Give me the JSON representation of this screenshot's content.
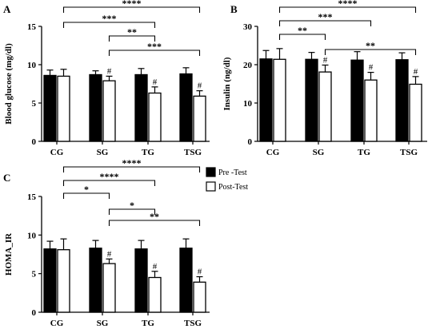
{
  "legend": {
    "items": [
      {
        "label": "Pre -Test",
        "color": "#000000"
      },
      {
        "label": "Post-Test",
        "color": "#ffffff"
      }
    ]
  },
  "chart_data": [
    {
      "id": "A",
      "type": "bar",
      "panel_label": "A",
      "ylabel": "Blood glucose (mg/dl)",
      "categories": [
        "CG",
        "SG",
        "TG",
        "TSG"
      ],
      "ylim": [
        0,
        15
      ],
      "yticks": [
        0,
        5,
        10,
        15
      ],
      "grid": false,
      "series": [
        {
          "name": "Pre -Test",
          "color": "#000000",
          "values": [
            8.6,
            8.7,
            8.7,
            8.8
          ],
          "errors": [
            0.7,
            0.5,
            0.8,
            0.8
          ]
        },
        {
          "name": "Post-Test",
          "color": "#ffffff",
          "values": [
            8.5,
            7.9,
            6.3,
            5.9
          ],
          "errors": [
            0.9,
            0.6,
            0.8,
            0.7
          ]
        }
      ],
      "hash_marks": [
        {
          "category": "SG",
          "text": "#"
        },
        {
          "category": "TG",
          "text": "#"
        },
        {
          "category": "TSG",
          "text": "#"
        }
      ],
      "comparisons": [
        {
          "from": "CG",
          "to": "TSG",
          "label": "****"
        },
        {
          "from": "CG",
          "to": "TG",
          "label": "***"
        },
        {
          "from": "SG",
          "to": "TG",
          "label": "**"
        },
        {
          "from": "SG",
          "to": "TSG",
          "label": "***"
        }
      ]
    },
    {
      "id": "B",
      "type": "bar",
      "panel_label": "B",
      "ylabel": "Insulin (ng/dl)",
      "categories": [
        "CG",
        "SG",
        "TG",
        "TSG"
      ],
      "ylim": [
        0,
        30
      ],
      "yticks": [
        0,
        10,
        20,
        30
      ],
      "grid": false,
      "series": [
        {
          "name": "Pre -Test",
          "color": "#000000",
          "values": [
            21.5,
            21.4,
            21.2,
            21.3
          ],
          "errors": [
            2.2,
            1.8,
            2.2,
            1.8
          ]
        },
        {
          "name": "Post-Test",
          "color": "#ffffff",
          "values": [
            21.4,
            18.1,
            16.0,
            14.9
          ],
          "errors": [
            2.8,
            1.8,
            2.0,
            2.0
          ]
        }
      ],
      "hash_marks": [
        {
          "category": "SG",
          "text": "#"
        },
        {
          "category": "TG",
          "text": "#"
        },
        {
          "category": "TSG",
          "text": "#"
        }
      ],
      "comparisons": [
        {
          "from": "CG",
          "to": "TSG",
          "label": "****"
        },
        {
          "from": "CG",
          "to": "TG",
          "label": "***"
        },
        {
          "from": "CG",
          "to": "SG",
          "label": "**"
        },
        {
          "from": "SG",
          "to": "TSG",
          "label": "**"
        }
      ]
    },
    {
      "id": "C",
      "type": "bar",
      "panel_label": "C",
      "ylabel": "HOMA_IR",
      "categories": [
        "CG",
        "SG",
        "TG",
        "TSG"
      ],
      "ylim": [
        0,
        15
      ],
      "yticks": [
        0,
        5,
        10,
        15
      ],
      "grid": false,
      "series": [
        {
          "name": "Pre -Test",
          "color": "#000000",
          "values": [
            8.2,
            8.3,
            8.2,
            8.3
          ],
          "errors": [
            1.0,
            1.0,
            1.1,
            1.2
          ]
        },
        {
          "name": "Post-Test",
          "color": "#ffffff",
          "values": [
            8.1,
            6.3,
            4.5,
            3.9
          ],
          "errors": [
            1.4,
            0.6,
            0.8,
            0.7
          ]
        }
      ],
      "hash_marks": [
        {
          "category": "SG",
          "text": "#"
        },
        {
          "category": "TG",
          "text": "#"
        },
        {
          "category": "TSG",
          "text": "#"
        }
      ],
      "comparisons": [
        {
          "from": "CG",
          "to": "TSG",
          "label": "****"
        },
        {
          "from": "CG",
          "to": "TG",
          "label": "****"
        },
        {
          "from": "CG",
          "to": "SG",
          "label": "*"
        },
        {
          "from": "SG",
          "to": "TG",
          "label": "*"
        },
        {
          "from": "SG",
          "to": "TSG",
          "label": "**"
        }
      ]
    }
  ]
}
